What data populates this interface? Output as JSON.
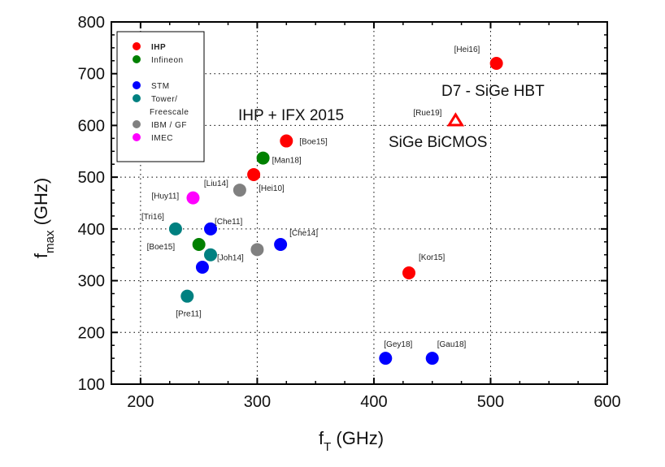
{
  "chart_data": {
    "type": "scatter",
    "xlabel": "f",
    "xlabel_sub": "T",
    "xlabel_unit": " (GHz)",
    "ylabel": "f",
    "ylabel_sub": "max",
    "ylabel_unit": " (GHz)",
    "xlim": [
      175,
      600
    ],
    "ylim": [
      100,
      800
    ],
    "xticks": [
      200,
      300,
      400,
      500,
      600
    ],
    "yticks": [
      100,
      200,
      300,
      400,
      500,
      600,
      700,
      800
    ],
    "grid": true,
    "legend_placement": "top-left",
    "series": [
      {
        "name": "IHP",
        "color": "#ff0000",
        "marker": "circle",
        "points": [
          {
            "x": 505,
            "y": 720,
            "label": "[Hei16]"
          },
          {
            "x": 325,
            "y": 570,
            "label": "[Boe15]"
          },
          {
            "x": 297,
            "y": 505,
            "label": "[Hei10]"
          },
          {
            "x": 430,
            "y": 315,
            "label": "[Kor15]"
          }
        ]
      },
      {
        "name": "Infineon",
        "color": "#008000",
        "marker": "circle",
        "points": [
          {
            "x": 305,
            "y": 537,
            "label": "[Man18]"
          },
          {
            "x": 250,
            "y": 370,
            "label": "[Boe15]"
          }
        ]
      },
      {
        "name": "STM",
        "color": "#0000ff",
        "marker": "circle",
        "points": [
          {
            "x": 260,
            "y": 400,
            "label": "[Che11]"
          },
          {
            "x": 320,
            "y": 370,
            "label": "[Che14]"
          },
          {
            "x": 253,
            "y": 326,
            "label": ""
          },
          {
            "x": 410,
            "y": 150,
            "label": "[Gey18]"
          },
          {
            "x": 450,
            "y": 150,
            "label": "[Gau18]"
          }
        ]
      },
      {
        "name": "Tower/ Freescale",
        "name_lines": [
          "Tower/",
          "Freescale"
        ],
        "color": "#008080",
        "marker": "circle",
        "points": [
          {
            "x": 230,
            "y": 400,
            "label": "[Tri16]"
          },
          {
            "x": 260,
            "y": 350,
            "label": "[Joh14]"
          },
          {
            "x": 240,
            "y": 270,
            "label": "[Pre11]"
          }
        ]
      },
      {
        "name": "IBM  / GF",
        "color": "#808080",
        "marker": "circle",
        "points": [
          {
            "x": 285,
            "y": 475,
            "label": "[Liu14]"
          },
          {
            "x": 300,
            "y": 360,
            "label": ""
          }
        ]
      },
      {
        "name": "IMEC",
        "color": "#ff00ff",
        "marker": "circle",
        "points": [
          {
            "x": 245,
            "y": 460,
            "label": "[Huy11]"
          }
        ]
      },
      {
        "name": "",
        "color": "#ff0000",
        "marker": "open-triangle",
        "points": [
          {
            "x": 470,
            "y": 610,
            "label": "[Rue19]"
          }
        ]
      }
    ],
    "annotations": [
      "IHP + IFX 2015",
      "D7 - SiGe HBT",
      "SiGe BiCMOS"
    ]
  }
}
